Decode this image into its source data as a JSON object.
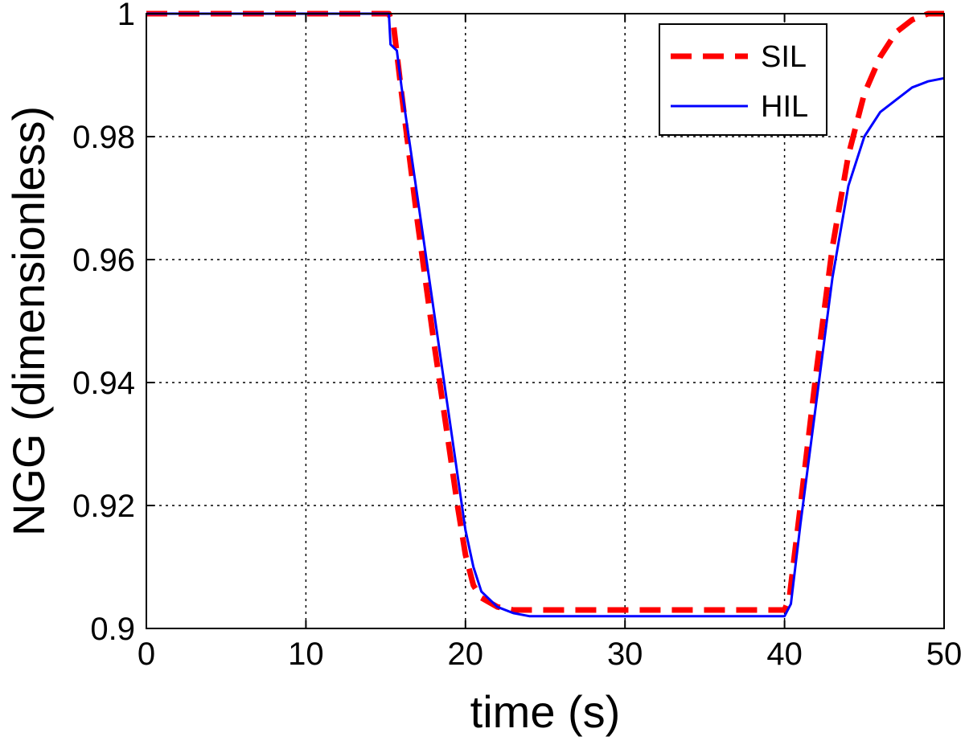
{
  "chart_data": {
    "type": "line",
    "title": "",
    "xlabel": "time (s)",
    "ylabel": "NGG (dimensionless)",
    "xlim": [
      0,
      50
    ],
    "ylim": [
      0.9,
      1.0
    ],
    "xticks": [
      0,
      10,
      20,
      30,
      40,
      50
    ],
    "yticks": [
      0.9,
      0.92,
      0.94,
      0.96,
      0.98,
      1.0
    ],
    "xtick_labels": [
      "0",
      "10",
      "20",
      "30",
      "40",
      "50"
    ],
    "ytick_labels": [
      "0.9",
      "0.92",
      "0.94",
      "0.96",
      "0.98",
      "1"
    ],
    "grid": true,
    "legend_position": "top-right",
    "series": [
      {
        "name": "SIL",
        "color": "#ff0000",
        "style": "dashed",
        "points": [
          [
            0,
            1.0
          ],
          [
            15.2,
            1.0
          ],
          [
            15.5,
            0.998
          ],
          [
            16,
            0.987
          ],
          [
            17,
            0.966
          ],
          [
            18,
            0.947
          ],
          [
            19,
            0.929
          ],
          [
            19.5,
            0.92
          ],
          [
            20,
            0.912
          ],
          [
            20.5,
            0.907
          ],
          [
            21,
            0.905
          ],
          [
            22,
            0.9035
          ],
          [
            23,
            0.903
          ],
          [
            25,
            0.903
          ],
          [
            30,
            0.903
          ],
          [
            35,
            0.903
          ],
          [
            40,
            0.903
          ],
          [
            40.3,
            0.905
          ],
          [
            41,
            0.92
          ],
          [
            42,
            0.942
          ],
          [
            43,
            0.962
          ],
          [
            44,
            0.977
          ],
          [
            45,
            0.987
          ],
          [
            46,
            0.993
          ],
          [
            47,
            0.997
          ],
          [
            48,
            0.999
          ],
          [
            49,
            1.0
          ],
          [
            50,
            1.0
          ]
        ]
      },
      {
        "name": "HIL",
        "color": "#0000ff",
        "style": "solid",
        "points": [
          [
            0,
            1.0
          ],
          [
            15.2,
            1.0
          ],
          [
            15.3,
            0.995
          ],
          [
            15.7,
            0.994
          ],
          [
            16,
            0.988
          ],
          [
            17,
            0.97
          ],
          [
            18,
            0.952
          ],
          [
            19,
            0.934
          ],
          [
            19.5,
            0.925
          ],
          [
            20,
            0.916
          ],
          [
            20.5,
            0.91
          ],
          [
            21,
            0.906
          ],
          [
            22,
            0.9035
          ],
          [
            23,
            0.9025
          ],
          [
            24,
            0.902
          ],
          [
            30,
            0.902
          ],
          [
            35,
            0.902
          ],
          [
            40,
            0.902
          ],
          [
            40.4,
            0.904
          ],
          [
            41,
            0.917
          ],
          [
            42,
            0.937
          ],
          [
            43,
            0.957
          ],
          [
            44,
            0.972
          ],
          [
            45,
            0.98
          ],
          [
            46,
            0.984
          ],
          [
            47,
            0.986
          ],
          [
            48,
            0.988
          ],
          [
            49,
            0.989
          ],
          [
            50,
            0.9895
          ]
        ]
      }
    ]
  }
}
